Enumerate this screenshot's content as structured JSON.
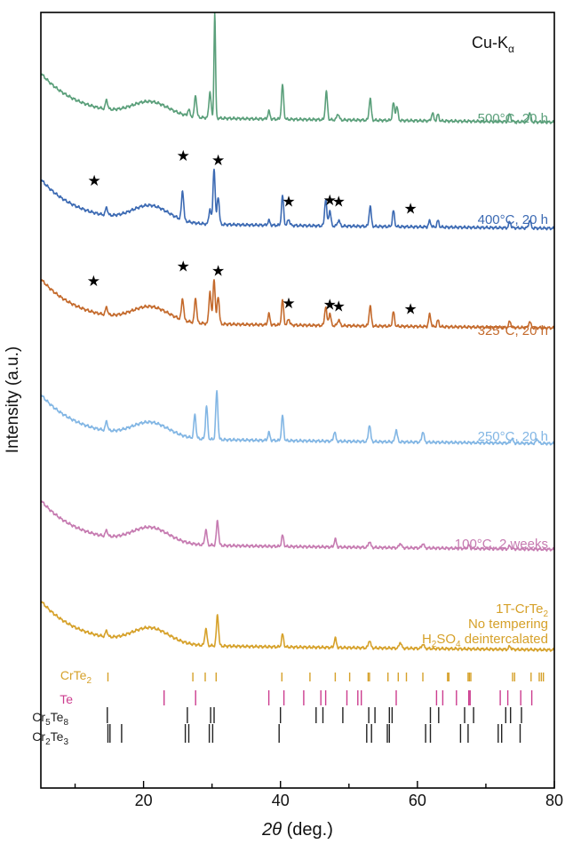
{
  "chart_data": {
    "type": "line",
    "title": "",
    "annotation": {
      "base": "Cu-K",
      "sub": "α"
    },
    "xlabel": {
      "italic": "2θ",
      "rest": " (deg.)"
    },
    "ylabel": "Intensity (a.u.)",
    "xlim": [
      5,
      80
    ],
    "xticks": [
      20,
      40,
      60,
      80
    ],
    "grid": false,
    "star_symbol": "★",
    "series": [
      {
        "name": "500°C, 20 h",
        "color": "#5a9f7a",
        "base": 0.95,
        "hump": 0.9,
        "label_parts": [
          {
            "t": "500°C, 20 h"
          }
        ],
        "peaks": [
          [
            14.6,
            0.6
          ],
          [
            26.6,
            0.4
          ],
          [
            27.6,
            1.4
          ],
          [
            29.7,
            1.7
          ],
          [
            30.4,
            6.8
          ],
          [
            38.3,
            0.5
          ],
          [
            40.3,
            2.2
          ],
          [
            46.7,
            1.8
          ],
          [
            48.4,
            0.4
          ],
          [
            53.1,
            1.4
          ],
          [
            56.5,
            1.1
          ],
          [
            57.0,
            0.9
          ],
          [
            62.2,
            0.5
          ],
          [
            63.0,
            0.4
          ],
          [
            73.5,
            0.5
          ],
          [
            76.4,
            0.6
          ]
        ],
        "stars": []
      },
      {
        "name": "400°C, 20 h",
        "color": "#3c6ab3",
        "base": 0.75,
        "hump": 1.05,
        "label_parts": [
          {
            "t": "400°C, 20 h"
          }
        ],
        "peaks": [
          [
            14.6,
            0.5
          ],
          [
            25.7,
            1.9
          ],
          [
            29.7,
            1.0
          ],
          [
            30.3,
            3.6
          ],
          [
            30.9,
            1.8
          ],
          [
            38.3,
            0.3
          ],
          [
            40.3,
            1.9
          ],
          [
            41.2,
            0.4
          ],
          [
            46.6,
            1.7
          ],
          [
            47.2,
            1.0
          ],
          [
            48.5,
            0.4
          ],
          [
            53.1,
            1.3
          ],
          [
            56.5,
            1.0
          ],
          [
            61.8,
            0.4
          ],
          [
            63.0,
            0.4
          ],
          [
            73.5,
            0.4
          ],
          [
            76.4,
            0.5
          ]
        ],
        "stars": [
          [
            12.8,
            1.65
          ],
          [
            25.8,
            2.5
          ],
          [
            30.9,
            2.35
          ],
          [
            41.2,
            0.95
          ],
          [
            47.2,
            1.0
          ],
          [
            48.5,
            0.95
          ],
          [
            59.0,
            0.7
          ]
        ]
      },
      {
        "name": "325°C, 20 h",
        "color": "#c46a2c",
        "base": 0.8,
        "hump": 0.95,
        "label_parts": [
          {
            "t": "325°C, 20 h"
          }
        ],
        "peaks": [
          [
            14.6,
            0.5
          ],
          [
            25.7,
            1.4
          ],
          [
            27.6,
            1.6
          ],
          [
            29.7,
            2.1
          ],
          [
            30.3,
            2.9
          ],
          [
            30.9,
            1.8
          ],
          [
            38.3,
            0.7
          ],
          [
            40.3,
            1.6
          ],
          [
            41.2,
            0.4
          ],
          [
            46.6,
            1.2
          ],
          [
            47.2,
            0.8
          ],
          [
            48.5,
            0.4
          ],
          [
            53.1,
            1.3
          ],
          [
            56.5,
            0.9
          ],
          [
            61.8,
            0.8
          ],
          [
            63.0,
            0.4
          ],
          [
            73.5,
            0.4
          ],
          [
            76.4,
            0.4
          ]
        ],
        "stars": [
          [
            12.7,
            1.65
          ],
          [
            25.8,
            2.15
          ],
          [
            30.9,
            2.0
          ],
          [
            41.2,
            0.9
          ],
          [
            47.2,
            0.85
          ],
          [
            48.5,
            0.8
          ],
          [
            59.0,
            0.7
          ]
        ]
      },
      {
        "name": "250°C, 20 h",
        "color": "#82b6e4",
        "base": 0.85,
        "hump": 0.95,
        "label_parts": [
          {
            "t": "250°C, 20 h"
          }
        ],
        "peaks": [
          [
            14.6,
            0.6
          ],
          [
            27.5,
            1.5
          ],
          [
            29.2,
            2.1
          ],
          [
            30.7,
            3.1
          ],
          [
            38.3,
            0.5
          ],
          [
            40.3,
            1.6
          ],
          [
            47.9,
            0.6
          ],
          [
            53.0,
            1.1
          ],
          [
            56.9,
            0.8
          ],
          [
            60.8,
            0.7
          ],
          [
            73.8,
            0.3
          ],
          [
            77.5,
            0.3
          ]
        ],
        "stars": []
      },
      {
        "name": "100°C, 2 weeks",
        "color": "#c67bb1",
        "base": 0.9,
        "hump": 1.0,
        "label_parts": [
          {
            "t": "100°C, 2 weeks"
          }
        ],
        "peaks": [
          [
            14.6,
            0.4
          ],
          [
            29.1,
            1.0
          ],
          [
            30.8,
            1.6
          ],
          [
            40.3,
            0.7
          ],
          [
            48.0,
            0.5
          ],
          [
            53.0,
            0.4
          ],
          [
            57.5,
            0.3
          ],
          [
            60.8,
            0.3
          ],
          [
            67.5,
            0.2
          ],
          [
            73.5,
            0.2
          ]
        ],
        "stars": []
      },
      {
        "name": "1T-CrTe2 / No tempering / H2SO4 deintercalated",
        "color": "#d6a12a",
        "base": 0.95,
        "hump": 1.0,
        "label_parts": [
          {
            "t": "1T-CrTe"
          },
          {
            "t": "2",
            "sub": true
          },
          {
            "t": "No tempering",
            "newline": true
          },
          {
            "t": "H",
            "newline": true
          },
          {
            "t": "2",
            "sub": true
          },
          {
            "t": "SO"
          },
          {
            "t": "4",
            "sub": true
          },
          {
            "t": " deintercalated"
          }
        ],
        "peaks": [
          [
            14.6,
            0.4
          ],
          [
            29.1,
            1.1
          ],
          [
            30.8,
            2.0
          ],
          [
            40.3,
            0.8
          ],
          [
            48.0,
            0.6
          ],
          [
            53.0,
            0.5
          ],
          [
            57.5,
            0.4
          ],
          [
            60.8,
            0.3
          ],
          [
            73.5,
            0.2
          ]
        ],
        "stars": []
      }
    ],
    "reference_patterns": [
      {
        "name": "CrTe2",
        "color": "#d6a12a",
        "label_parts": [
          {
            "t": "CrTe"
          },
          {
            "t": "2",
            "sub": true
          }
        ],
        "positions": [
          14.8,
          27.2,
          29.0,
          30.6,
          40.2,
          44.3,
          48.0,
          50.1,
          52.8,
          53.0,
          55.7,
          57.2,
          58.4,
          60.8,
          64.4,
          64.6,
          67.4,
          67.6,
          67.8,
          73.9,
          74.2,
          76.6,
          77.8,
          78.1,
          78.4
        ]
      },
      {
        "name": "Te",
        "color": "#cc3d8f",
        "label_parts": [
          {
            "t": "Te"
          }
        ],
        "positions": [
          23.0,
          27.6,
          38.3,
          40.5,
          43.4,
          45.9,
          46.6,
          49.7,
          51.3,
          51.8,
          56.9,
          62.8,
          63.7,
          65.7,
          67.5,
          67.7,
          72.1,
          73.2,
          75.1,
          76.7
        ]
      },
      {
        "name": "Cr5Te8",
        "color": "#222222",
        "label_parts": [
          {
            "t": "Cr"
          },
          {
            "t": "5",
            "sub": true
          },
          {
            "t": "Te"
          },
          {
            "t": "8",
            "sub": true
          }
        ],
        "positions": [
          14.7,
          26.4,
          29.8,
          30.3,
          40.0,
          45.2,
          46.2,
          49.1,
          52.9,
          53.8,
          55.9,
          56.3,
          61.9,
          63.1,
          66.9,
          68.2,
          72.9,
          73.6,
          75.2
        ]
      },
      {
        "name": "Cr2Te3",
        "color": "#222222",
        "label_parts": [
          {
            "t": "Cr"
          },
          {
            "t": "2",
            "sub": true
          },
          {
            "t": "Te"
          },
          {
            "t": "3",
            "sub": true
          }
        ],
        "positions": [
          14.8,
          15.1,
          16.8,
          26.1,
          26.6,
          29.6,
          30.1,
          39.8,
          52.6,
          53.3,
          55.6,
          55.9,
          61.2,
          61.9,
          66.3,
          67.4,
          71.8,
          72.3,
          75.0
        ]
      }
    ]
  }
}
